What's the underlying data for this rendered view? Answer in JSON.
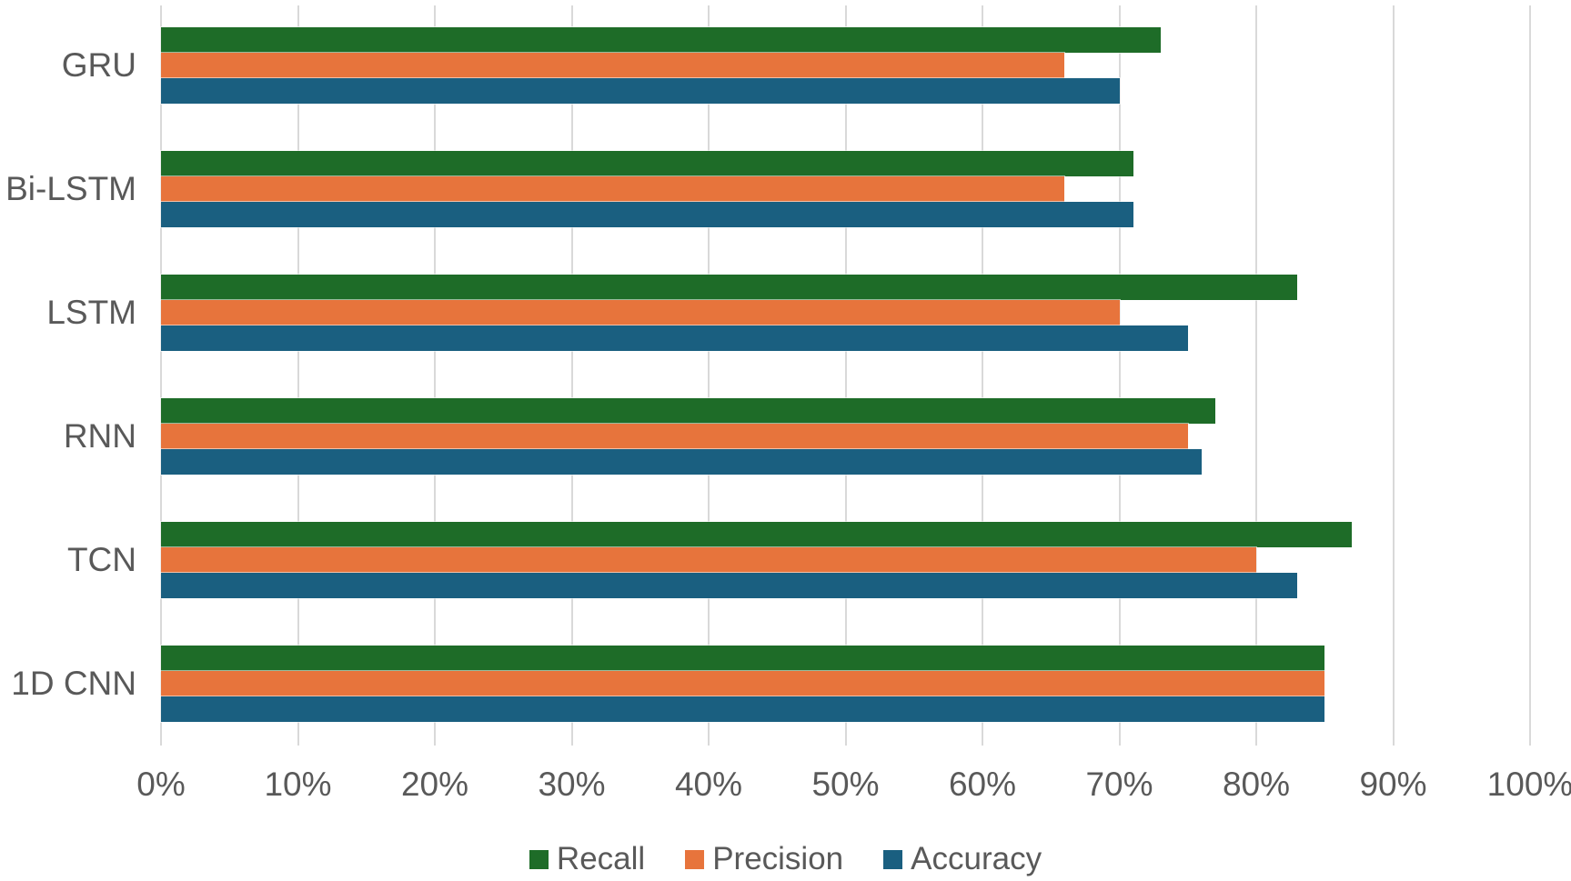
{
  "chart_data": {
    "type": "bar",
    "orientation": "horizontal",
    "title": "",
    "xlabel": "",
    "ylabel": "",
    "categories": [
      "GRU",
      "Bi-LSTM",
      "LSTM",
      "RNN",
      "TCN",
      "1D CNN"
    ],
    "series": [
      {
        "name": "Recall",
        "color": "#1E6C28",
        "values": [
          73,
          71,
          83,
          77,
          87,
          85
        ]
      },
      {
        "name": "Precision",
        "color": "#E7743C",
        "values": [
          66,
          66,
          70,
          75,
          80,
          85
        ]
      },
      {
        "name": "Accuracy",
        "color": "#1A5F80",
        "values": [
          70,
          71,
          75,
          76,
          83,
          85
        ]
      }
    ],
    "xlim": [
      0,
      100
    ],
    "x_tick_step": 10,
    "x_tick_labels": [
      "0%",
      "10%",
      "20%",
      "30%",
      "40%",
      "50%",
      "60%",
      "70%",
      "80%",
      "90%",
      "100%"
    ],
    "grid": true,
    "legend_position": "bottom-center"
  },
  "colors": {
    "background": "#FFFFFF",
    "grid": "#D9D9D9",
    "text": "#595959"
  }
}
